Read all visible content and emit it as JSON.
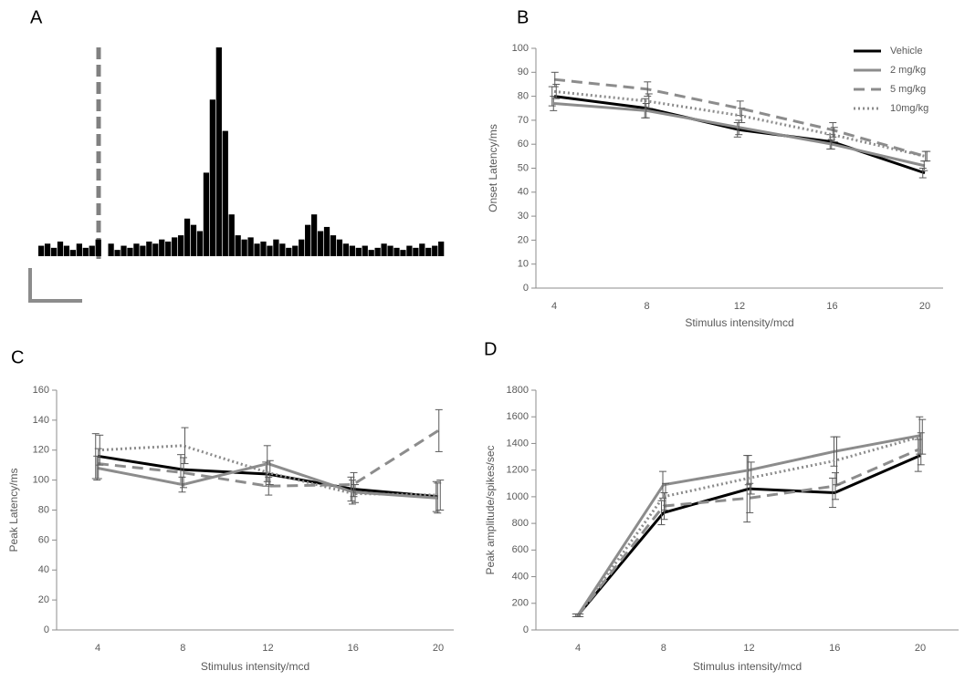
{
  "chart_data": [
    {
      "type": "histogram",
      "title": "A",
      "color": "#000000",
      "values": [
        5,
        6,
        4,
        7,
        5,
        3,
        6,
        4,
        5,
        8,
        0,
        6,
        3,
        5,
        4,
        6,
        5,
        7,
        6,
        8,
        7,
        9,
        10,
        18,
        15,
        12,
        40,
        75,
        100,
        60,
        20,
        10,
        8,
        9,
        6,
        7,
        5,
        8,
        6,
        4,
        5,
        8,
        15,
        20,
        12,
        14,
        10,
        8,
        6,
        5,
        4,
        5,
        3,
        4,
        6,
        5,
        4,
        3,
        5,
        4,
        6,
        4,
        5,
        7
      ]
    },
    {
      "type": "line",
      "title": "B",
      "ylabel": "Onset Latency/ms",
      "xlabel": "Stimulus intensity/mcd",
      "categories": [
        "4",
        "8",
        "12",
        "16",
        "20"
      ],
      "ylim": [
        0,
        100
      ],
      "yticks": [
        0,
        10,
        20,
        30,
        40,
        50,
        60,
        70,
        80,
        90,
        100
      ],
      "legend": "upper right",
      "series": [
        {
          "name": "Vehicle",
          "color": "#000000",
          "dash": "solid",
          "values": [
            80,
            75,
            66,
            61,
            48
          ],
          "errors": [
            4,
            4,
            3,
            3,
            2
          ]
        },
        {
          "name": "2 mg/kg",
          "color": "#8c8c8c",
          "dash": "solid",
          "values": [
            77,
            74,
            67,
            60,
            51
          ],
          "errors": [
            3,
            3,
            3,
            2,
            2
          ]
        },
        {
          "name": "5 mg/kg",
          "color": "#8c8c8c",
          "dash": "dashed",
          "values": [
            87,
            83,
            75,
            66,
            55
          ],
          "errors": [
            3,
            3,
            3,
            3,
            2
          ]
        },
        {
          "name": "10mg/kg",
          "color": "#8c8c8c",
          "dash": "dotted",
          "values": [
            82,
            78,
            72,
            64,
            55
          ],
          "errors": [
            3,
            3,
            3,
            3,
            2
          ]
        }
      ]
    },
    {
      "type": "line",
      "title": "C",
      "ylabel": "Peak Latency/ms",
      "xlabel": "Stimulus intensity/mcd",
      "categories": [
        "4",
        "8",
        "12",
        "16",
        "20"
      ],
      "ylim": [
        0,
        160
      ],
      "yticks": [
        0,
        20,
        40,
        60,
        80,
        100,
        120,
        140,
        160
      ],
      "series": [
        {
          "name": "Vehicle",
          "color": "#000000",
          "dash": "solid",
          "values": [
            116,
            107,
            104,
            94,
            89
          ],
          "errors": [
            15,
            10,
            8,
            8,
            10
          ]
        },
        {
          "name": "2 mg/kg",
          "color": "#8c8c8c",
          "dash": "solid",
          "values": [
            108,
            97,
            111,
            92,
            88
          ],
          "errors": [
            8,
            5,
            12,
            8,
            10
          ]
        },
        {
          "name": "5 mg/kg",
          "color": "#8c8c8c",
          "dash": "dashed",
          "values": [
            111,
            105,
            96,
            97,
            133
          ],
          "errors": [
            10,
            10,
            6,
            8,
            14
          ]
        },
        {
          "name": "10mg/kg",
          "color": "#8c8c8c",
          "dash": "dotted",
          "values": [
            120,
            123,
            105,
            91,
            90
          ],
          "errors": [
            10,
            12,
            8,
            6,
            10
          ]
        }
      ]
    },
    {
      "type": "line",
      "title": "D",
      "ylabel": "Peak amplitude/spikes/sec",
      "xlabel": "Stimulus intensity/mcd",
      "categories": [
        "4",
        "8",
        "12",
        "16",
        "20"
      ],
      "ylim": [
        0,
        1800
      ],
      "yticks": [
        0,
        200,
        400,
        600,
        800,
        1000,
        1200,
        1400,
        1600,
        1800
      ],
      "series": [
        {
          "name": "Vehicle",
          "color": "#000000",
          "dash": "solid",
          "values": [
            110,
            880,
            1060,
            1030,
            1310
          ],
          "errors": [
            10,
            90,
            250,
            110,
            120
          ]
        },
        {
          "name": "2 mg/kg",
          "color": "#8c8c8c",
          "dash": "solid",
          "values": [
            110,
            1090,
            1200,
            1340,
            1460
          ],
          "errors": [
            10,
            100,
            110,
            110,
            140
          ]
        },
        {
          "name": "5 mg/kg",
          "color": "#8c8c8c",
          "dash": "dashed",
          "values": [
            110,
            930,
            990,
            1080,
            1360
          ],
          "errors": [
            10,
            100,
            110,
            100,
            120
          ]
        },
        {
          "name": "10mg/kg",
          "color": "#8c8c8c",
          "dash": "dotted",
          "values": [
            110,
            1000,
            1140,
            1270,
            1450
          ],
          "errors": [
            10,
            100,
            120,
            180,
            130
          ]
        }
      ]
    }
  ]
}
